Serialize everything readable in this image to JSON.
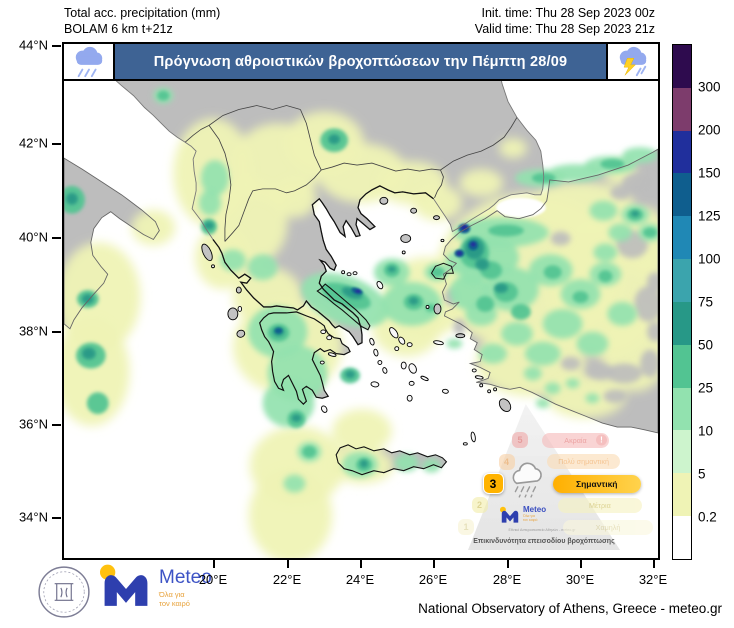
{
  "header": {
    "left_line1": "Total acc. precipitation (mm)",
    "left_line2": "BOLAM 6 km t+21z",
    "right_line1": "Init. time: Thu 28 Sep 2023 00z",
    "right_line2": "Valid time: Thu 28 Sep 2023 21z"
  },
  "banner": {
    "title": "Πρόγνωση αθροιστικών βροχοπτώσεων την Πέμπτη 28/09",
    "bg_color": "#3e6394",
    "icons": [
      "rain-cloud-icon",
      "storm-cloud-icon"
    ]
  },
  "axes": {
    "lat_labels": [
      "44°N",
      "42°N",
      "40°N",
      "38°N",
      "36°N",
      "34°N"
    ],
    "lon_labels": [
      "20°E",
      "22°E",
      "24°E",
      "26°E",
      "28°E",
      "30°E",
      "32°E"
    ]
  },
  "colorbar": {
    "units": "mm",
    "boundary_labels": [
      "300",
      "200",
      "150",
      "125",
      "100",
      "75",
      "50",
      "25",
      "10",
      "5",
      "0.2"
    ],
    "segment_colors": [
      "#2e0b4e",
      "#7d3c6c",
      "#202f9c",
      "#0f5e8e",
      "#2088b5",
      "#3ba4ad",
      "#279887",
      "#52c492",
      "#92e2af",
      "#cdf4cd",
      "#eff3b5",
      "#ffffff"
    ]
  },
  "map_legend": {
    "land_color": "#bdbdbd",
    "sea_color": "#ffffff"
  },
  "risk_pyramid": {
    "caption": "Επικινδυνότητα επεισοδίου βροχόπτωσης",
    "active_level": "3",
    "levels": [
      {
        "n": "5",
        "label": "Ακραία",
        "badge_bg": "#f0a8a8",
        "pill_bg": "#f6b9b9",
        "text": "#e06666",
        "bang": "!"
      },
      {
        "n": "4",
        "label": "Πολύ σημαντική",
        "badge_bg": "#f8d0a4",
        "pill_bg": "#fbdcb4",
        "text": "#ef9f4d"
      },
      {
        "n": "3",
        "label": "Σημαντική",
        "badge_bg": "#ffb300",
        "pill_bg": "#ffbe1d",
        "text": "#111111",
        "active": true
      },
      {
        "n": "2",
        "label": "Μέτρια",
        "badge_bg": "#f2eda9",
        "pill_bg": "#f6f2c0",
        "text": "#c9ba50"
      },
      {
        "n": "1",
        "label": "Χαμηλή",
        "badge_bg": "#f7f3d2",
        "pill_bg": "#faf7dd",
        "text": "#d6cc8f"
      }
    ],
    "logo": {
      "brand": "Meteo",
      "tagline_line1": "Όλα για",
      "tagline_line2": "τον καιρό",
      "subtext": "Εθνικό Αστεροσκοπείο Αθηνών - meteo.gr"
    }
  },
  "footer": {
    "credit": "National Observatory of Athens, Greece - meteo.gr"
  },
  "logos": {
    "meteo_brand": "Meteo",
    "meteo_tagline_line1": "Όλα για",
    "meteo_tagline_line2": "τον καιρό",
    "noa_seal": "national-observatory-athens-seal"
  }
}
